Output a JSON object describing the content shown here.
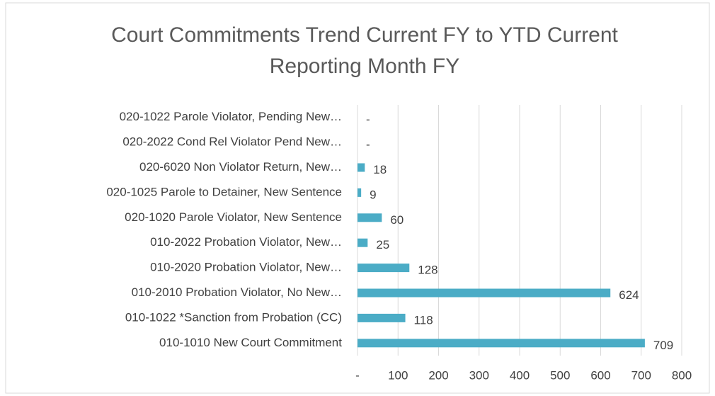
{
  "chart_data": {
    "type": "barh",
    "title": "Court Commitments Trend Current FY to YTD Current Reporting Month FY",
    "categories": [
      "020-1022 Parole Violator, Pending New…",
      "020-2022 Cond Rel Violator Pend New…",
      "020-6020 Non Violator Return, New…",
      "020-1025 Parole to Detainer, New Sentence",
      "020-1020 Parole Violator, New Sentence",
      "010-2022 Probation Violator, New…",
      "010-2020 Probation Violator, New…",
      "010-2010 Probation Violator, No New…",
      "010-1022  *Sanction from Probation (CC)",
      "010-1010 New Court Commitment"
    ],
    "values": [
      0,
      0,
      18,
      9,
      60,
      25,
      128,
      624,
      118,
      709
    ],
    "value_labels": [
      "-",
      "-",
      "18",
      "9",
      "60",
      "25",
      "128",
      "624",
      "118",
      "709"
    ],
    "color": "#4bacc6",
    "xlim": [
      0,
      800
    ],
    "xticks": [
      {
        "value": 0,
        "label": "-"
      },
      100,
      200,
      300,
      400,
      500,
      600,
      700,
      800
    ],
    "grid": true
  }
}
